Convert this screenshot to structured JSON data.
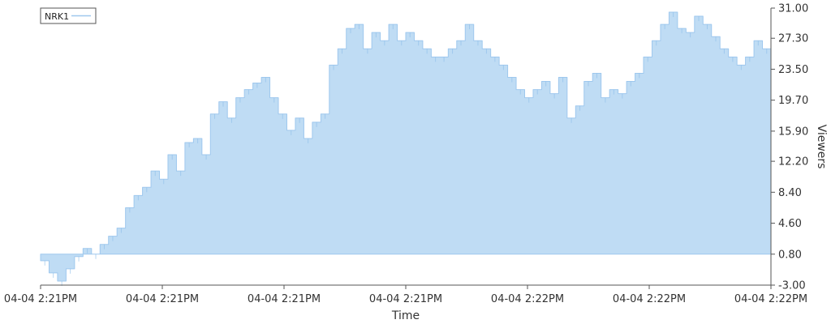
{
  "chart_data": {
    "type": "area",
    "title": "",
    "xlabel": "Time",
    "ylabel": "Viewers",
    "ylim": [
      -3.0,
      31.0
    ],
    "y_ticks": [
      "31.00",
      "27.30",
      "23.50",
      "19.70",
      "15.90",
      "12.20",
      "8.40",
      "4.60",
      "0.80",
      "-3.00"
    ],
    "x_ticks": [
      "04-04 2:21PM",
      "04-04 2:21PM",
      "04-04 2:21PM",
      "04-04 2:21PM",
      "04-04 2:22PM",
      "04-04 2:22PM",
      "04-04 2:22PM"
    ],
    "legend": {
      "position": "top-left",
      "entries": [
        "NRK1"
      ]
    },
    "baseline": 0.8,
    "grid": false,
    "colors": {
      "fill": "#bfdcf4",
      "line": "#9fc8ee"
    },
    "series": [
      {
        "name": "NRK1",
        "values": [
          0,
          -1.5,
          -2.5,
          -1,
          0.5,
          1.5,
          0.8,
          2,
          3,
          4,
          6.5,
          8,
          9,
          11,
          10,
          13,
          11,
          14.5,
          15,
          13,
          18,
          19.5,
          17.5,
          20,
          21,
          21.8,
          22.5,
          20,
          18,
          16,
          17.5,
          15,
          17,
          18,
          24,
          26,
          28.5,
          29,
          26,
          28,
          27,
          29,
          27,
          28,
          27,
          26,
          25,
          25,
          26,
          27,
          29,
          27,
          26,
          25,
          24,
          22.5,
          21,
          20,
          21,
          22,
          20.5,
          22.5,
          17.5,
          19,
          22,
          23,
          20,
          21,
          20.5,
          22,
          23,
          25,
          27,
          29,
          30.5,
          28.5,
          28,
          30,
          29,
          27.5,
          26,
          25,
          24,
          25,
          27,
          26
        ]
      }
    ]
  }
}
